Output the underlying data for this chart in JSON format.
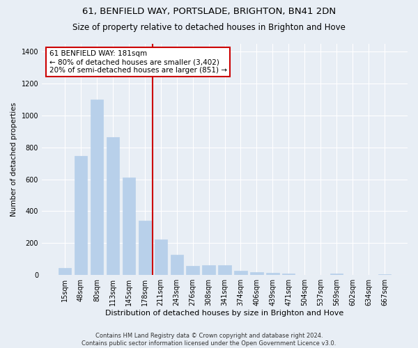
{
  "title1": "61, BENFIELD WAY, PORTSLADE, BRIGHTON, BN41 2DN",
  "title2": "Size of property relative to detached houses in Brighton and Hove",
  "xlabel": "Distribution of detached houses by size in Brighton and Hove",
  "ylabel": "Number of detached properties",
  "footer1": "Contains HM Land Registry data © Crown copyright and database right 2024.",
  "footer2": "Contains public sector information licensed under the Open Government Licence v3.0.",
  "categories": [
    "15sqm",
    "48sqm",
    "80sqm",
    "113sqm",
    "145sqm",
    "178sqm",
    "211sqm",
    "243sqm",
    "276sqm",
    "308sqm",
    "341sqm",
    "374sqm",
    "406sqm",
    "439sqm",
    "471sqm",
    "504sqm",
    "537sqm",
    "569sqm",
    "602sqm",
    "634sqm",
    "667sqm"
  ],
  "values": [
    45,
    748,
    1097,
    862,
    612,
    340,
    225,
    128,
    57,
    62,
    60,
    25,
    18,
    12,
    10,
    0,
    0,
    8,
    0,
    0,
    5
  ],
  "bar_color": "#b8d0ea",
  "bar_edgecolor": "#b8d0ea",
  "vline_x_index": 5,
  "vline_color": "#cc0000",
  "annotation_text": "61 BENFIELD WAY: 181sqm\n← 80% of detached houses are smaller (3,402)\n20% of semi-detached houses are larger (851) →",
  "annotation_box_facecolor": "#ffffff",
  "annotation_box_edgecolor": "#cc0000",
  "ylim": [
    0,
    1450
  ],
  "yticks": [
    0,
    200,
    400,
    600,
    800,
    1000,
    1200,
    1400
  ],
  "bg_color": "#e8eef5",
  "plot_bg_color": "#e8eef5",
  "grid_color": "#ffffff",
  "title1_fontsize": 9.5,
  "title2_fontsize": 8.5,
  "xlabel_fontsize": 8,
  "ylabel_fontsize": 7.5,
  "tick_fontsize": 7,
  "annotation_fontsize": 7.5,
  "footer_fontsize": 6
}
